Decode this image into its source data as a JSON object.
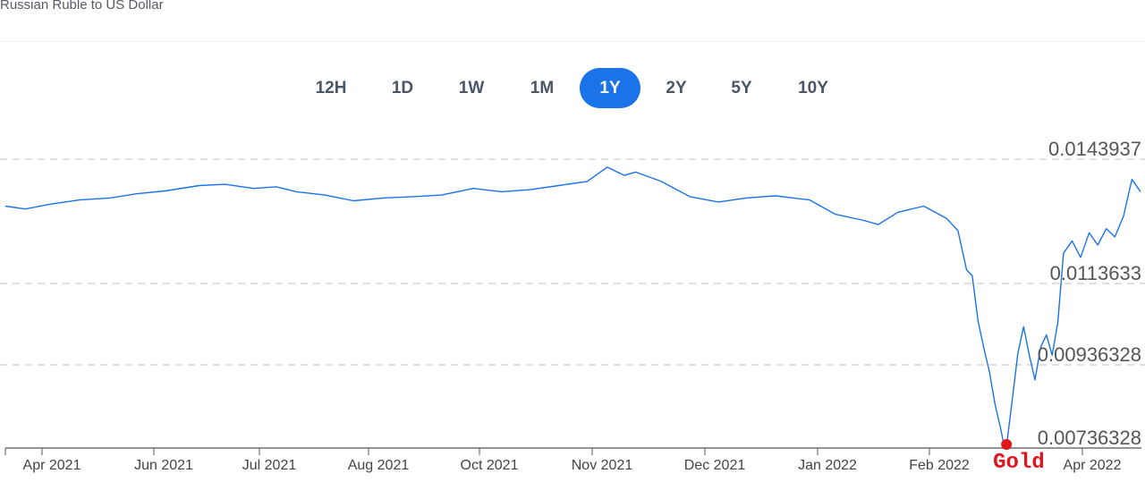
{
  "page": {
    "title": "Russian Ruble to US Dollar"
  },
  "range_selector": {
    "options": [
      "12H",
      "1D",
      "1W",
      "1M",
      "1Y",
      "2Y",
      "5Y",
      "10Y"
    ],
    "active": "1Y"
  },
  "colors": {
    "line": "#1a73e8",
    "active_button": "#1a73e8",
    "grid": "#cccccc",
    "annotation": "#e0161e"
  },
  "chart_data": {
    "type": "line",
    "title": "Russian Ruble to US Dollar",
    "xlabel": "",
    "ylabel": "",
    "x_tick_labels": [
      "Apr 2021",
      "Jun 2021",
      "Jul 2021",
      "Aug 2021",
      "Oct 2021",
      "Nov 2021",
      "Dec 2021",
      "Jan 2022",
      "Feb 2022",
      "Apr 2022"
    ],
    "y_tick_labels": [
      "0.0143937",
      "0.0113633",
      "0.00936328",
      "0.00736328"
    ],
    "y_ticks": [
      0.0143937,
      0.0113633,
      0.00936328,
      0.00736328
    ],
    "ylim": [
      0.00736328,
      0.0143937
    ],
    "xlim": [
      "2021-03-25",
      "2022-04-27"
    ],
    "grid": true,
    "series": [
      {
        "points": [
          [
            "2021-03-25",
            0.01325
          ],
          [
            "2021-04-01",
            0.01318
          ],
          [
            "2021-04-10",
            0.0133
          ],
          [
            "2021-04-20",
            0.0134
          ],
          [
            "2021-05-01",
            0.01345
          ],
          [
            "2021-05-10",
            0.01355
          ],
          [
            "2021-05-20",
            0.01362
          ],
          [
            "2021-06-01",
            0.01375
          ],
          [
            "2021-06-10",
            0.01378
          ],
          [
            "2021-06-20",
            0.01368
          ],
          [
            "2021-06-28",
            0.01372
          ],
          [
            "2021-07-05",
            0.0136
          ],
          [
            "2021-07-15",
            0.01352
          ],
          [
            "2021-07-25",
            0.01338
          ],
          [
            "2021-08-05",
            0.01345
          ],
          [
            "2021-08-15",
            0.01348
          ],
          [
            "2021-08-25",
            0.01352
          ],
          [
            "2021-09-05",
            0.01368
          ],
          [
            "2021-09-15",
            0.0136
          ],
          [
            "2021-09-25",
            0.01365
          ],
          [
            "2021-10-05",
            0.01375
          ],
          [
            "2021-10-15",
            0.01385
          ],
          [
            "2021-10-22",
            0.0142
          ],
          [
            "2021-10-28",
            0.014
          ],
          [
            "2021-11-01",
            0.01408
          ],
          [
            "2021-11-10",
            0.01385
          ],
          [
            "2021-11-20",
            0.01348
          ],
          [
            "2021-11-30",
            0.01335
          ],
          [
            "2021-12-10",
            0.01345
          ],
          [
            "2021-12-20",
            0.0135
          ],
          [
            "2022-01-01",
            0.0134
          ],
          [
            "2022-01-10",
            0.01305
          ],
          [
            "2022-01-20",
            0.0129
          ],
          [
            "2022-01-25",
            0.0128
          ],
          [
            "2022-02-01",
            0.0131
          ],
          [
            "2022-02-10",
            0.01325
          ],
          [
            "2022-02-18",
            0.01295
          ],
          [
            "2022-02-22",
            0.01265
          ],
          [
            "2022-02-25",
            0.0117
          ],
          [
            "2022-02-27",
            0.01155
          ],
          [
            "2022-03-01",
            0.01045
          ],
          [
            "2022-03-03",
            0.0098
          ],
          [
            "2022-03-05",
            0.0092
          ],
          [
            "2022-03-07",
            0.0084
          ],
          [
            "2022-03-09",
            0.0078
          ],
          [
            "2022-03-10",
            0.00745
          ],
          [
            "2022-03-11",
            0.00736
          ],
          [
            "2022-03-13",
            0.0085
          ],
          [
            "2022-03-15",
            0.00965
          ],
          [
            "2022-03-17",
            0.0103
          ],
          [
            "2022-03-19",
            0.0096
          ],
          [
            "2022-03-21",
            0.009
          ],
          [
            "2022-03-23",
            0.0098
          ],
          [
            "2022-03-25",
            0.0101
          ],
          [
            "2022-03-27",
            0.0096
          ],
          [
            "2022-03-29",
            0.0104
          ],
          [
            "2022-03-31",
            0.0121
          ],
          [
            "2022-04-03",
            0.0124
          ],
          [
            "2022-04-06",
            0.012
          ],
          [
            "2022-04-09",
            0.0126
          ],
          [
            "2022-04-12",
            0.0123
          ],
          [
            "2022-04-15",
            0.0127
          ],
          [
            "2022-04-18",
            0.0125
          ],
          [
            "2022-04-21",
            0.013
          ],
          [
            "2022-04-24",
            0.0139
          ],
          [
            "2022-04-27",
            0.0136
          ]
        ]
      }
    ],
    "annotation": {
      "label": "Gold",
      "date": "2022-03-11",
      "value": 0.00736328
    }
  }
}
